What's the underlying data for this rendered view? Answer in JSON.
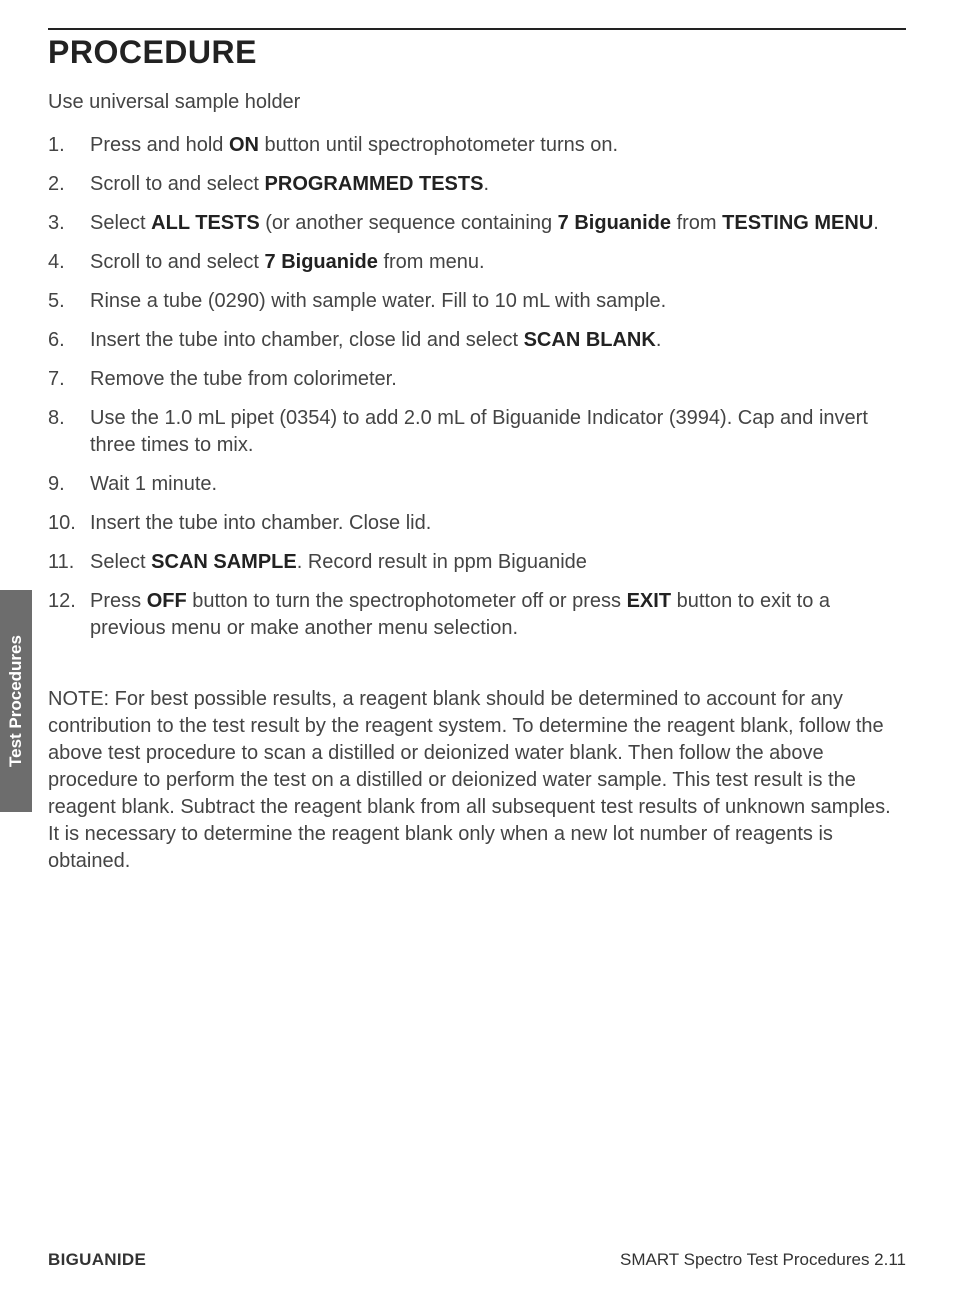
{
  "page": {
    "rule_color": "#222222",
    "section_title": "PROCEDURE",
    "intro": "Use universal sample holder",
    "side_tab": "Test Procedures",
    "footer_left": "BIGUANIDE",
    "footer_right": "SMART Spectro Test Procedures 2.11"
  },
  "steps": {
    "s1_a": "Press and hold ",
    "s1_b": "ON",
    "s1_c": " button until spectrophotometer turns on.",
    "s2_a": "Scroll to and select ",
    "s2_b": "PROGRAMMED TESTS",
    "s2_c": ".",
    "s3_a": "Select ",
    "s3_b": "ALL TESTS",
    "s3_c": " (or another sequence containing ",
    "s3_d": "7 Biguanide",
    "s3_e": " from ",
    "s3_f": "TESTING MENU",
    "s3_g": ".",
    "s4_a": "Scroll to and select ",
    "s4_b": "7 Biguanide",
    "s4_c": " from menu.",
    "s5": "Rinse a tube (0290) with sample water. Fill to 10 mL with sample.",
    "s6_a": "Insert the tube into chamber, close lid and select ",
    "s6_b": "SCAN BLANK",
    "s6_c": ".",
    "s7": "Remove the tube from colorimeter.",
    "s8": "Use the 1.0 mL pipet (0354) to add 2.0 mL of Biguanide Indicator (3994). Cap and invert three times to mix.",
    "s9": "Wait 1 minute.",
    "s10": "Insert the tube into chamber. Close lid.",
    "s11_a": "Select ",
    "s11_b": "SCAN SAMPLE",
    "s11_c": ". Record result in ppm Biguanide",
    "s12_a": "Press ",
    "s12_b": "OFF",
    "s12_c": " button to turn the spectrophotometer off or press ",
    "s12_d": "EXIT",
    "s12_e": " button to exit to a previous menu or make another menu selection."
  },
  "note": "NOTE: For best possible results, a reagent blank should be determined to account for any contribution to the test result by the reagent system. To determine the reagent blank, follow the above test procedure to scan a distilled or deionized water blank. Then follow the above procedure to perform the test on a distilled or deionized water sample. This test result is the reagent blank. Subtract the reagent blank from all subsequent test results of unknown samples.  It is necessary to determine the reagent blank only when a new lot number of reagents is obtained."
}
